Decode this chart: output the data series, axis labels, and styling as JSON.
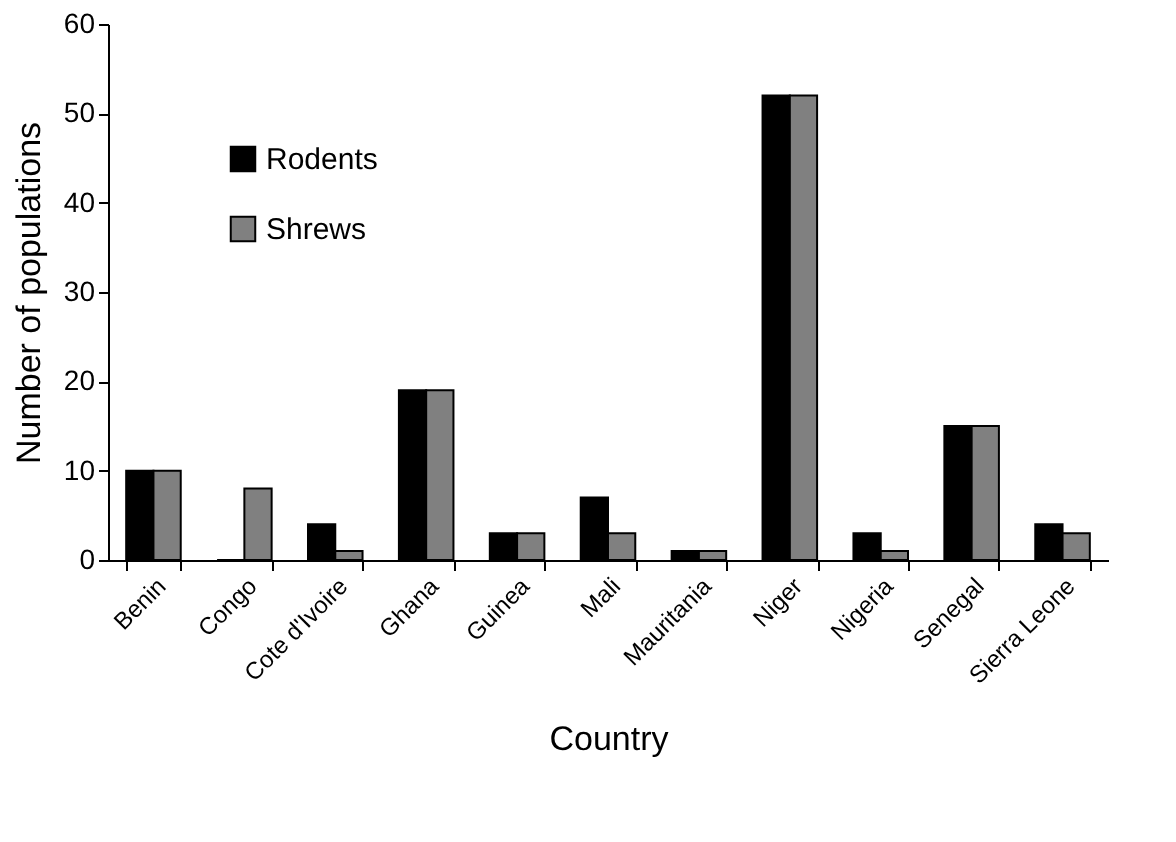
{
  "chart_data": {
    "type": "bar",
    "xlabel": "Country",
    "ylabel": "Number of populations",
    "categories": [
      "Benin",
      "Congo",
      "Cote d'Ivoire",
      "Ghana",
      "Guinea",
      "Mali",
      "Mauritania",
      "Niger",
      "Nigeria",
      "Senegal",
      "Sierra Leone"
    ],
    "series": [
      {
        "name": "Rodents",
        "color": "#000000",
        "values": [
          10,
          0,
          4,
          19,
          3,
          7,
          1,
          52,
          3,
          15,
          4
        ]
      },
      {
        "name": "Shrews",
        "color": "#808080",
        "values": [
          10,
          8,
          1,
          19,
          3,
          3,
          1,
          52,
          1,
          15,
          3
        ]
      }
    ],
    "ylim": [
      0,
      60
    ],
    "yticks": [
      0,
      10,
      20,
      30,
      40,
      50,
      60
    ],
    "grid": false,
    "legend": "top left"
  }
}
